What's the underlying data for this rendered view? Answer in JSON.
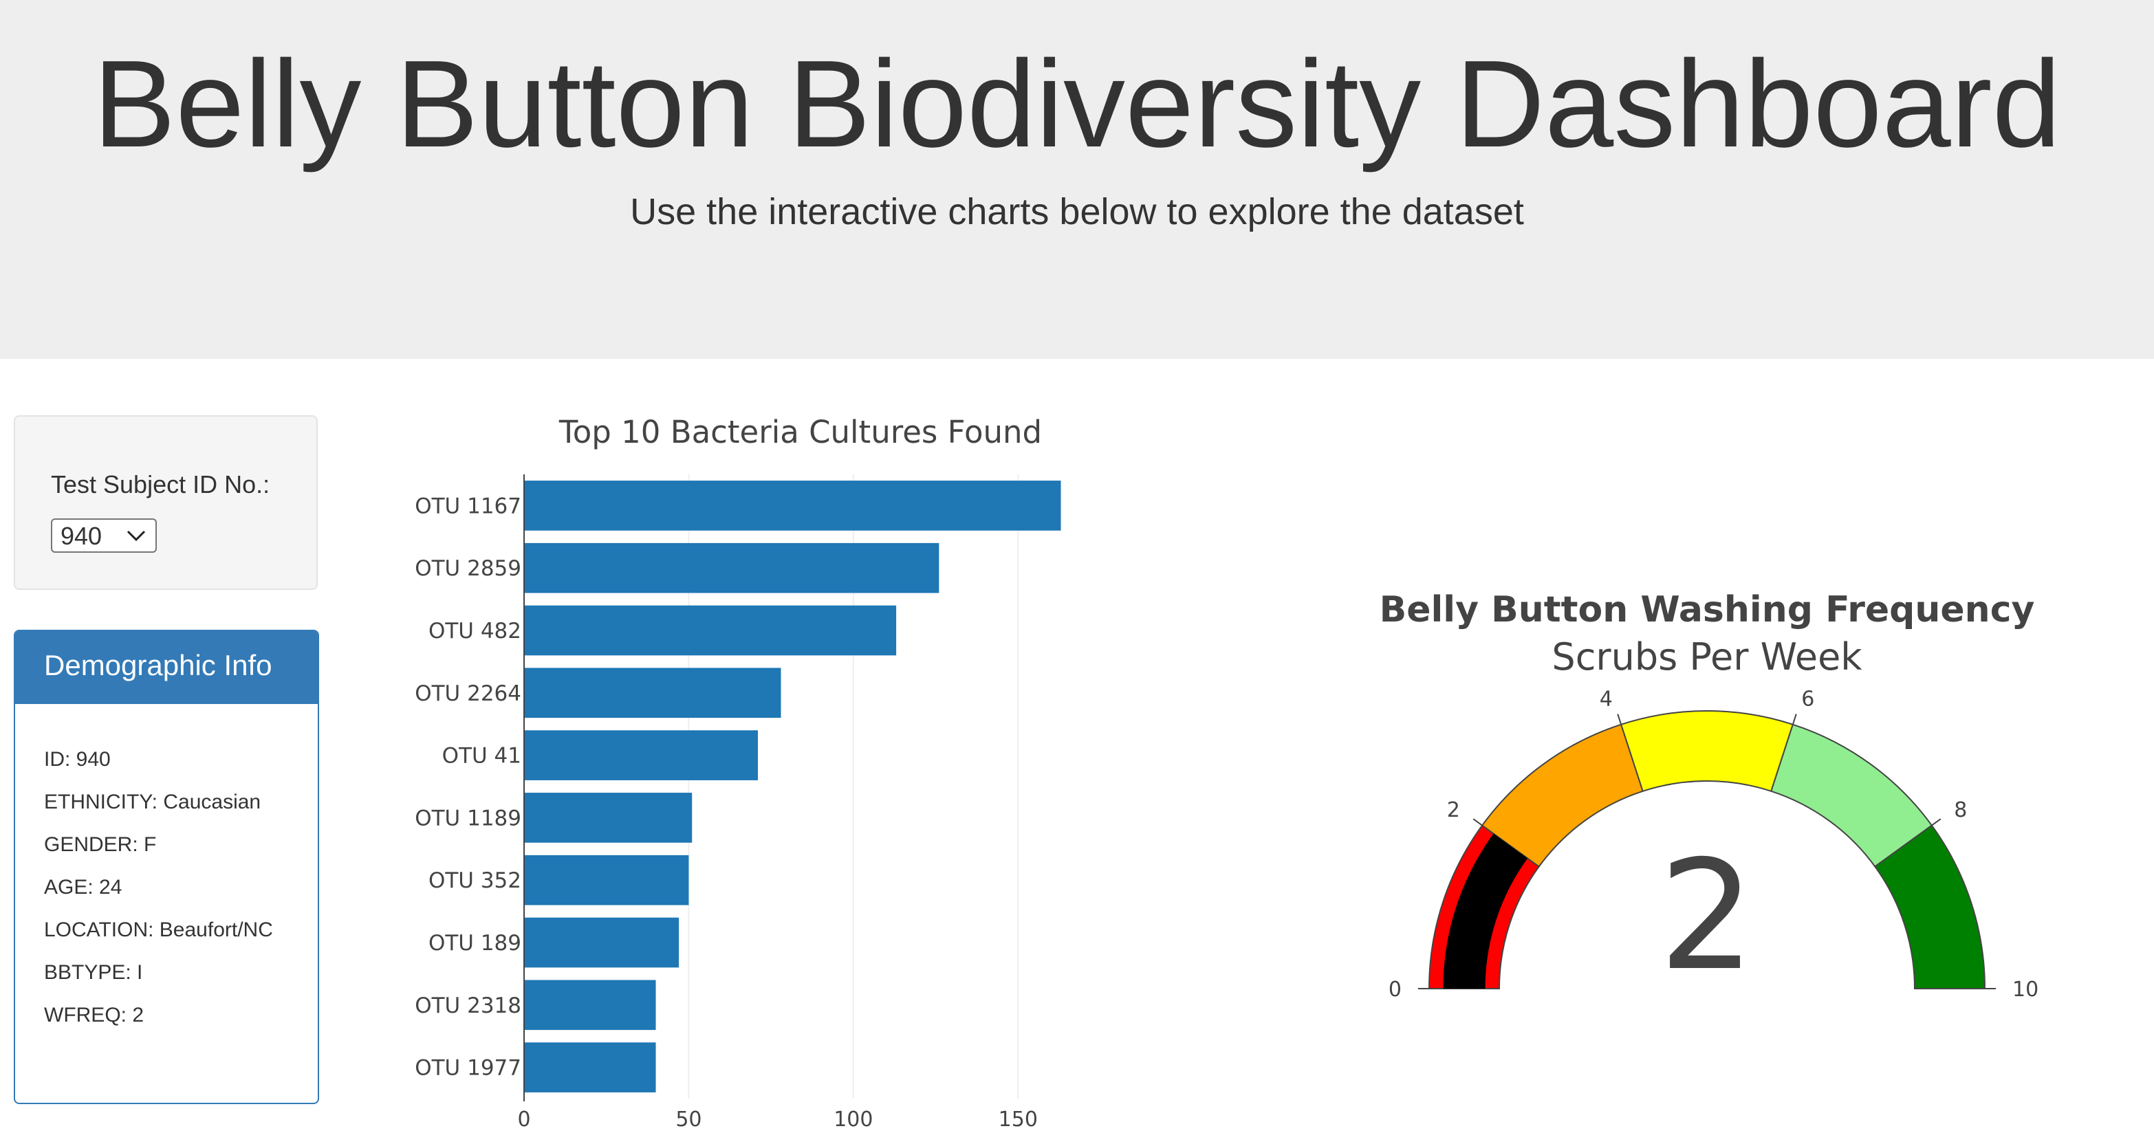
{
  "header": {
    "title": "Belly Button Biodiversity Dashboard",
    "subtitle": "Use the interactive charts below to explore the dataset"
  },
  "selector": {
    "label": "Test Subject ID No.:",
    "selected": "940",
    "icon": "chevron-down-icon"
  },
  "demographics": {
    "heading": "Demographic Info",
    "rows": [
      "ID: 940",
      "ETHNICITY: Caucasian",
      "GENDER: F",
      "AGE: 24",
      "LOCATION: Beaufort/NC",
      "BBTYPE: I",
      "WFREQ: 2"
    ]
  },
  "colors": {
    "panel_primary": "#337ab7",
    "bar": "#1f77b4",
    "jumbotron": "#eeeeee"
  },
  "chart_data": [
    {
      "type": "bar",
      "orientation": "horizontal",
      "title": "Top 10 Bacteria Cultures Found",
      "categories": [
        "OTU 1167",
        "OTU 2859",
        "OTU 482",
        "OTU 2264",
        "OTU 41",
        "OTU 1189",
        "OTU 352",
        "OTU 189",
        "OTU 2318",
        "OTU 1977"
      ],
      "values": [
        163,
        126,
        113,
        78,
        71,
        51,
        50,
        47,
        40,
        40
      ],
      "xlim": [
        0,
        175
      ],
      "xticks": [
        0,
        50,
        100,
        150
      ],
      "grid": true,
      "color": "#1f77b4"
    },
    {
      "type": "gauge",
      "title": "Belly Button Washing Frequency",
      "subtitle": "Scrubs Per Week",
      "value": 2,
      "range": [
        0,
        10
      ],
      "ticks": [
        0,
        2,
        4,
        6,
        8,
        10
      ],
      "steps": [
        {
          "range": [
            0,
            2
          ],
          "color": "#ff0000"
        },
        {
          "range": [
            2,
            4
          ],
          "color": "#ffa500"
        },
        {
          "range": [
            4,
            6
          ],
          "color": "#ffff00"
        },
        {
          "range": [
            6,
            8
          ],
          "color": "#90ee90"
        },
        {
          "range": [
            8,
            10
          ],
          "color": "#008000"
        }
      ],
      "bar_color": "#000000"
    }
  ]
}
